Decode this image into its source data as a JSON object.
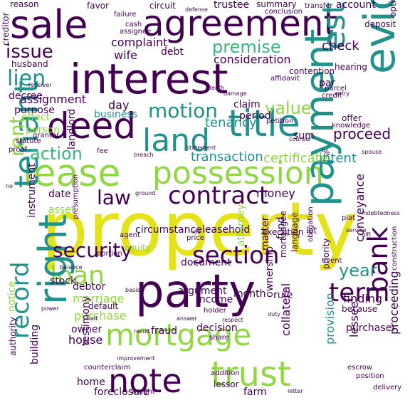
{
  "palette": {
    "dark": "#440154",
    "indigo": "#3b528b",
    "blue": "#31688e",
    "teal": "#21918c",
    "green": "#35b779",
    "lime": "#90d743",
    "yellow": "#e4e31a"
  },
  "words": [
    {
      "text": "property",
      "color": "yellow"
    },
    {
      "text": "interest",
      "color": "dark"
    },
    {
      "text": "agreement",
      "color": "dark"
    },
    {
      "text": "sale",
      "color": "dark"
    },
    {
      "text": "party",
      "color": "dark"
    },
    {
      "text": "lease",
      "color": "lime"
    },
    {
      "text": "possession",
      "color": "lime"
    },
    {
      "text": "title",
      "color": "teal"
    },
    {
      "text": "deed",
      "color": "dark"
    },
    {
      "text": "land",
      "color": "teal"
    },
    {
      "text": "evidence",
      "color": "teal"
    },
    {
      "text": "mortgage",
      "color": "lime"
    },
    {
      "text": "note",
      "color": "dark"
    },
    {
      "text": "trust",
      "color": "lime"
    },
    {
      "text": "payment",
      "color": "teal"
    },
    {
      "text": "bank",
      "color": "dark"
    },
    {
      "text": "tenant",
      "color": "teal"
    },
    {
      "text": "contract",
      "color": "dark"
    },
    {
      "text": "loan",
      "color": "lime"
    },
    {
      "text": "right",
      "color": "teal"
    },
    {
      "text": "estate",
      "color": "teal"
    },
    {
      "text": "term",
      "color": "dark"
    },
    {
      "text": "section",
      "color": "dark"
    },
    {
      "text": "security",
      "color": "dark"
    },
    {
      "text": "motion",
      "color": "teal"
    },
    {
      "text": "lien",
      "color": "teal"
    },
    {
      "text": "premise",
      "color": "green"
    },
    {
      "text": "issue",
      "color": "dark"
    },
    {
      "text": "value",
      "color": "lime"
    },
    {
      "text": "action",
      "color": "green"
    },
    {
      "text": "law",
      "color": "dark"
    },
    {
      "text": "record",
      "color": "teal"
    },
    {
      "text": "rent",
      "color": "lime"
    },
    {
      "text": "year",
      "color": "teal"
    },
    {
      "text": "proceed",
      "color": "dark"
    },
    {
      "text": "transaction",
      "color": "teal"
    },
    {
      "text": "certificate",
      "color": "lime"
    },
    {
      "text": "intent",
      "color": "teal"
    },
    {
      "text": "tenancy",
      "color": "teal"
    },
    {
      "text": "check",
      "color": "dark"
    },
    {
      "text": "complaint",
      "color": "dark"
    },
    {
      "text": "debt",
      "color": "dark"
    },
    {
      "text": "wife",
      "color": "dark"
    },
    {
      "text": "consideration",
      "color": "dark"
    },
    {
      "text": "assignment",
      "color": "dark"
    },
    {
      "text": "purpose",
      "color": "dark"
    },
    {
      "text": "day",
      "color": "dark"
    },
    {
      "text": "business",
      "color": "teal"
    },
    {
      "text": "claim",
      "color": "dark"
    },
    {
      "text": "period",
      "color": "dark"
    },
    {
      "text": "decree",
      "color": "dark"
    },
    {
      "text": "person",
      "color": "lime"
    },
    {
      "text": "money",
      "color": "dark"
    },
    {
      "text": "date",
      "color": "dark"
    },
    {
      "text": "instrument",
      "color": "dark"
    },
    {
      "text": "asset",
      "color": "lime"
    },
    {
      "text": "landlord",
      "color": "dark"
    },
    {
      "text": "circumstance",
      "color": "dark"
    },
    {
      "text": "leasehold",
      "color": "dark"
    },
    {
      "text": "execution",
      "color": "dark"
    },
    {
      "text": "lot",
      "color": "dark"
    },
    {
      "text": "fund",
      "color": "dark"
    },
    {
      "text": "matter",
      "color": "dark"
    },
    {
      "text": "attorney",
      "color": "lime"
    },
    {
      "text": "mortgagee",
      "color": "dark"
    },
    {
      "text": "document",
      "color": "dark"
    },
    {
      "text": "debtor",
      "color": "dark"
    },
    {
      "text": "marriage",
      "color": "lime"
    },
    {
      "text": "argument",
      "color": "dark"
    },
    {
      "text": "month",
      "color": "dark"
    },
    {
      "text": "finding",
      "color": "dark"
    },
    {
      "text": "conveyance",
      "color": "dark"
    },
    {
      "text": "because",
      "color": "dark"
    },
    {
      "text": "stock",
      "color": "dark"
    },
    {
      "text": "purchase",
      "color": "lime"
    },
    {
      "text": "owner",
      "color": "dark"
    },
    {
      "text": "default",
      "color": "dark"
    },
    {
      "text": "fraud",
      "color": "dark"
    },
    {
      "text": "decision",
      "color": "dark"
    },
    {
      "text": "income",
      "color": "dark"
    },
    {
      "text": "ownership",
      "color": "dark"
    },
    {
      "text": "rule",
      "color": "dark"
    },
    {
      "text": "house",
      "color": "dark"
    },
    {
      "text": "collateral",
      "color": "dark"
    },
    {
      "text": "provision",
      "color": "teal"
    },
    {
      "text": "lessee",
      "color": "dark"
    },
    {
      "text": "proceeding",
      "color": "dark"
    },
    {
      "text": "purchaser",
      "color": "dark"
    },
    {
      "text": "home",
      "color": "dark"
    },
    {
      "text": "foreclosure",
      "color": "dark"
    },
    {
      "text": "farm",
      "color": "dark"
    },
    {
      "text": "building",
      "color": "dark"
    },
    {
      "text": "testimony",
      "color": "dark"
    },
    {
      "text": "authority",
      "color": "dark"
    },
    {
      "text": "notice",
      "color": "lime"
    },
    {
      "text": "reason",
      "color": "dark"
    },
    {
      "text": "favor",
      "color": "dark"
    },
    {
      "text": "circuit",
      "color": "dark"
    },
    {
      "text": "trustee",
      "color": "dark"
    },
    {
      "text": "summary",
      "color": "dark"
    },
    {
      "text": "account",
      "color": "dark"
    },
    {
      "text": "conclusion",
      "color": "dark"
    },
    {
      "text": "deposit",
      "color": "dark"
    },
    {
      "text": "husband",
      "color": "dark"
    },
    {
      "text": "contention",
      "color": "dark"
    },
    {
      "text": "par",
      "color": "dark"
    },
    {
      "text": "hearing",
      "color": "dark"
    },
    {
      "text": "offer",
      "color": "dark"
    },
    {
      "text": "knowledge",
      "color": "dark"
    },
    {
      "text": "effect",
      "color": "lime"
    },
    {
      "text": "creditor",
      "color": "dark"
    },
    {
      "text": "statute",
      "color": "dark"
    },
    {
      "text": "proof",
      "color": "dark"
    },
    {
      "text": "sum",
      "color": "dark"
    },
    {
      "text": "lessor",
      "color": "dark"
    },
    {
      "text": "price",
      "color": "dark"
    },
    {
      "text": "agent",
      "color": "dark"
    },
    {
      "text": "equity",
      "color": "lime"
    },
    {
      "text": "portion",
      "color": "dark"
    },
    {
      "text": "language",
      "color": "dark"
    },
    {
      "text": "obligation",
      "color": "dark"
    },
    {
      "text": "event",
      "color": "dark"
    },
    {
      "text": "priority",
      "color": "dark"
    },
    {
      "text": "weight",
      "color": "dark"
    },
    {
      "text": "addition",
      "color": "dark"
    },
    {
      "text": "escrow",
      "color": "dark"
    },
    {
      "text": "position",
      "color": "dark"
    },
    {
      "text": "delivery",
      "color": "dark"
    },
    {
      "text": "construction",
      "color": "dark"
    },
    {
      "text": "counterclaim",
      "color": "dark"
    },
    {
      "text": "improvement",
      "color": "dark"
    },
    {
      "text": "holder",
      "color": "dark"
    },
    {
      "text": "answer",
      "color": "dark"
    },
    {
      "text": "failure",
      "color": "dark"
    },
    {
      "text": "cash",
      "color": "dark"
    },
    {
      "text": "assignee",
      "color": "dark"
    },
    {
      "text": "defense",
      "color": "dark"
    },
    {
      "text": "transfer",
      "color": "dark"
    },
    {
      "text": "option",
      "color": "dark"
    },
    {
      "text": "grantor",
      "color": "dark"
    },
    {
      "text": "credit",
      "color": "dark"
    },
    {
      "text": "affidavit",
      "color": "dark"
    },
    {
      "text": "parcel",
      "color": "dark"
    },
    {
      "text": "entry",
      "color": "dark"
    },
    {
      "text": "receiver",
      "color": "dark"
    },
    {
      "text": "petition",
      "color": "dark"
    },
    {
      "text": "statement",
      "color": "dark"
    },
    {
      "text": "death",
      "color": "dark"
    },
    {
      "text": "damage",
      "color": "dark"
    },
    {
      "text": "spouse",
      "color": "dark"
    },
    {
      "text": "use",
      "color": "dark"
    },
    {
      "text": "counsel",
      "color": "dark"
    },
    {
      "text": "fee",
      "color": "dark"
    },
    {
      "text": "breach",
      "color": "dark"
    },
    {
      "text": "ground",
      "color": "dark"
    },
    {
      "text": "indebtedness",
      "color": "dark"
    },
    {
      "text": "service",
      "color": "dark"
    },
    {
      "text": "gift",
      "color": "dark"
    },
    {
      "text": "basis",
      "color": "dark"
    },
    {
      "text": "half",
      "color": "dark"
    },
    {
      "text": "duty",
      "color": "dark"
    },
    {
      "text": "respect",
      "color": "dark"
    },
    {
      "text": "result",
      "color": "dark"
    },
    {
      "text": "share",
      "color": "dark"
    },
    {
      "text": "power",
      "color": "dark"
    },
    {
      "text": "presumption",
      "color": "dark"
    },
    {
      "text": "balance",
      "color": "dark"
    },
    {
      "text": "letter",
      "color": "dark"
    },
    {
      "text": "plat",
      "color": "dark"
    },
    {
      "text": "%",
      "color": "dark"
    },
    {
      "text": "no",
      "color": "dark"
    }
  ]
}
